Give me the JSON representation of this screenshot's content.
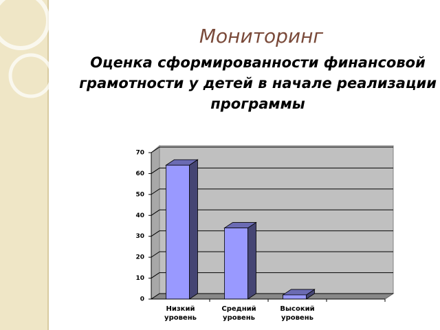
{
  "chart_data": {
    "type": "bar",
    "title": "Мониторинг",
    "subtitle": "Оценка сформированности финансовой грамотности у детей в начале реализации программы",
    "categories": [
      "Низкий уровень",
      "Средний уровень",
      "Высокий уровень",
      null
    ],
    "values": [
      64,
      34,
      2,
      null
    ],
    "color": "#9999ff",
    "ylim": [
      0,
      70
    ],
    "yticks": [
      0,
      10,
      20,
      30,
      40,
      50,
      60,
      70
    ],
    "grid": true
  }
}
